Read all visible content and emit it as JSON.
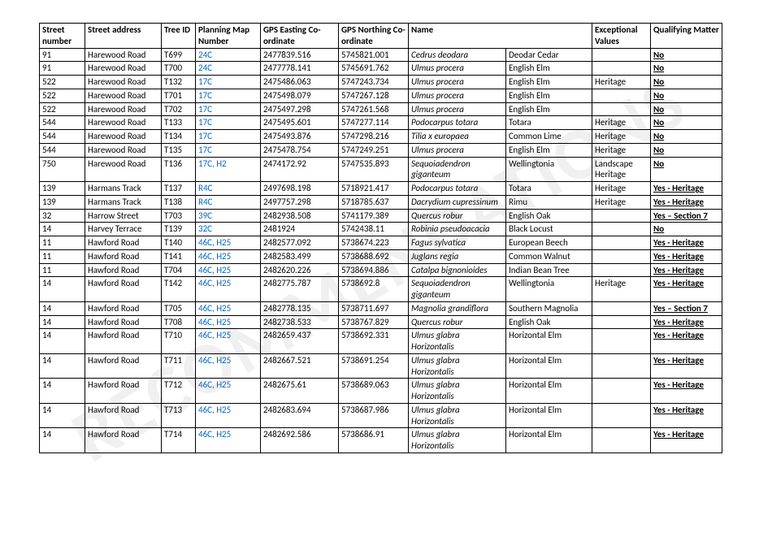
{
  "columns": [
    "Street number",
    "Street address",
    "Tree ID",
    "Planning Map Number",
    "GPS Easting Co-ordinate",
    "GPS Northing Co-ordinate",
    "Name",
    "",
    "Exceptional Values",
    "Qualifying Matter"
  ],
  "rows": [
    {
      "sn": "91",
      "sa": "Harewood Road",
      "tid": "T699",
      "pm": "24C",
      "ge": "2477839.516",
      "gn": "5745821.001",
      "nm": "Cedrus deodara",
      "cn": "Deodar Cedar",
      "ev": "",
      "qm": "No"
    },
    {
      "sn": "91",
      "sa": "Harewood Road",
      "tid": "T700",
      "pm": "24C",
      "ge": "2477778.141",
      "gn": "5745691.762",
      "nm": "Ulmus procera",
      "cn": "English Elm",
      "ev": "",
      "qm": "No"
    },
    {
      "sn": "522",
      "sa": "Harewood Road",
      "tid": "T132",
      "pm": "17C",
      "ge": "2475486.063",
      "gn": "5747243.734",
      "nm": "Ulmus procera",
      "cn": "English Elm",
      "ev": "Heritage",
      "qm": "No"
    },
    {
      "sn": "522",
      "sa": "Harewood Road",
      "tid": "T701",
      "pm": "17C",
      "ge": "2475498.079",
      "gn": "5747267.128",
      "nm": "Ulmus procera",
      "cn": "English Elm",
      "ev": "",
      "qm": "No"
    },
    {
      "sn": "522",
      "sa": "Harewood Road",
      "tid": "T702",
      "pm": "17C",
      "ge": "2475497.298",
      "gn": "5747261.568",
      "nm": "Ulmus procera",
      "cn": "English Elm",
      "ev": "",
      "qm": "No"
    },
    {
      "sn": "544",
      "sa": "Harewood Road",
      "tid": "T133",
      "pm": "17C",
      "ge": "2475495.601",
      "gn": "5747277.114",
      "nm": "Podocarpus totara",
      "cn": "Totara",
      "ev": "Heritage",
      "qm": "No"
    },
    {
      "sn": "544",
      "sa": "Harewood Road",
      "tid": "T134",
      "pm": "17C",
      "ge": "2475493.876",
      "gn": "5747298.216",
      "nm": "Tilia x europaea",
      "cn": "Common Lime",
      "ev": "Heritage",
      "qm": "No"
    },
    {
      "sn": "544",
      "sa": "Harewood Road",
      "tid": "T135",
      "pm": "17C",
      "ge": "2475478.754",
      "gn": "5747249.251",
      "nm": "Ulmus procera",
      "cn": "English Elm",
      "ev": "Heritage",
      "qm": "No"
    },
    {
      "sn": "750",
      "sa": "Harewood Road",
      "tid": "T136",
      "pm": "17C, H2",
      "ge": "2474172.92",
      "gn": "5747535.893",
      "nm": "Sequoiadendron giganteum",
      "cn": "Wellingtonia",
      "ev": "Landscape Heritage",
      "qm": "No"
    },
    {
      "sn": "139",
      "sa": "Harmans Track",
      "tid": "T137",
      "pm": "R4C",
      "ge": "2497698.198",
      "gn": "5718921.417",
      "nm": "Podocarpus totara",
      "cn": "Totara",
      "ev": "Heritage",
      "qm": "Yes - Heritage"
    },
    {
      "sn": "139",
      "sa": "Harmans Track",
      "tid": "T138",
      "pm": "R4C",
      "ge": "2497757.298",
      "gn": "5718785.637",
      "nm": "Dacrydium cupressinum",
      "cn": "Rimu",
      "ev": "Heritage",
      "qm": "Yes - Heritage"
    },
    {
      "sn": "32",
      "sa": "Harrow Street",
      "tid": "T703",
      "pm": "39C",
      "ge": "2482938.508",
      "gn": "5741179.389",
      "nm": "Quercus robur",
      "cn": "English Oak",
      "ev": "",
      "qm": "Yes – Section 7"
    },
    {
      "sn": "14",
      "sa": "Harvey Terrace",
      "tid": "T139",
      "pm": "32C",
      "ge": "2481924",
      "gn": "5742438.11",
      "nm": "Robinia pseudoacacia",
      "cn": "Black Locust",
      "ev": "",
      "qm": "No"
    },
    {
      "sn": "11",
      "sa": "Hawford Road",
      "tid": "T140",
      "pm": "46C, H25",
      "ge": "2482577.092",
      "gn": "5738674.223",
      "nm": "Fagus sylvatica",
      "cn": "European Beech",
      "ev": "",
      "qm": "Yes - Heritage"
    },
    {
      "sn": "11",
      "sa": "Hawford Road",
      "tid": "T141",
      "pm": "46C, H25",
      "ge": "2482583.499",
      "gn": "5738688.692",
      "nm": "Juglans regia",
      "cn": "Common Walnut",
      "ev": "",
      "qm": "Yes - Heritage"
    },
    {
      "sn": "11",
      "sa": "Hawford Road",
      "tid": "T704",
      "pm": "46C, H25",
      "ge": "2482620.226",
      "gn": "5738694.886",
      "nm": "Catalpa bignonioides",
      "cn": "Indian Bean Tree",
      "ev": "",
      "qm": "Yes - Heritage"
    },
    {
      "sn": "14",
      "sa": "Hawford Road",
      "tid": "T142",
      "pm": "46C, H25",
      "ge": "2482775.787",
      "gn": "5738692.8",
      "nm": "Sequoiadendron giganteum",
      "cn": "Wellingtonia",
      "ev": "Heritage",
      "qm": "Yes - Heritage"
    },
    {
      "sn": "14",
      "sa": "Hawford Road",
      "tid": "T705",
      "pm": "46C, H25",
      "ge": "2482778.135",
      "gn": "5738711.697",
      "nm": "Magnolia grandiflora",
      "cn": "Southern Magnolia",
      "ev": "",
      "qm": "Yes – Section 7"
    },
    {
      "sn": "14",
      "sa": "Hawford Road",
      "tid": "T708",
      "pm": "46C, H25",
      "ge": "2482738.533",
      "gn": "5738767.829",
      "nm": "Quercus robur",
      "cn": "English Oak",
      "ev": "",
      "qm": "Yes - Heritage"
    },
    {
      "sn": "14",
      "sa": "Hawford Road",
      "tid": "T710",
      "pm": "46C, H25",
      "ge": "2482659.437",
      "gn": "5738692.331",
      "nm": "Ulmus glabra Horizontalis",
      "cn": "Horizontal Elm",
      "ev": "",
      "qm": "Yes - Heritage"
    },
    {
      "sn": "14",
      "sa": "Hawford Road",
      "tid": "T711",
      "pm": "46C, H25",
      "ge": "2482667.521",
      "gn": "5738691.254",
      "nm": "Ulmus glabra Horizontalis",
      "cn": "Horizontal Elm",
      "ev": "",
      "qm": "Yes - Heritage"
    },
    {
      "sn": "14",
      "sa": "Hawford Road",
      "tid": "T712",
      "pm": "46C, H25",
      "ge": "2482675.61",
      "gn": "5738689.063",
      "nm": "Ulmus glabra Horizontalis",
      "cn": "Horizontal Elm",
      "ev": "",
      "qm": "Yes - Heritage"
    },
    {
      "sn": "14",
      "sa": "Hawford Road",
      "tid": "T713",
      "pm": "46C, H25",
      "ge": "2482683.694",
      "gn": "5738687.986",
      "nm": "Ulmus glabra Horizontalis",
      "cn": "Horizontal Elm",
      "ev": "",
      "qm": "Yes - Heritage"
    },
    {
      "sn": "14",
      "sa": "Hawford Road",
      "tid": "T714",
      "pm": "46C, H25",
      "ge": "2482692.586",
      "gn": "5738686.91",
      "nm": "Ulmus glabra Horizontalis",
      "cn": "Horizontal Elm",
      "ev": "",
      "qm": "Yes - Heritage"
    }
  ]
}
